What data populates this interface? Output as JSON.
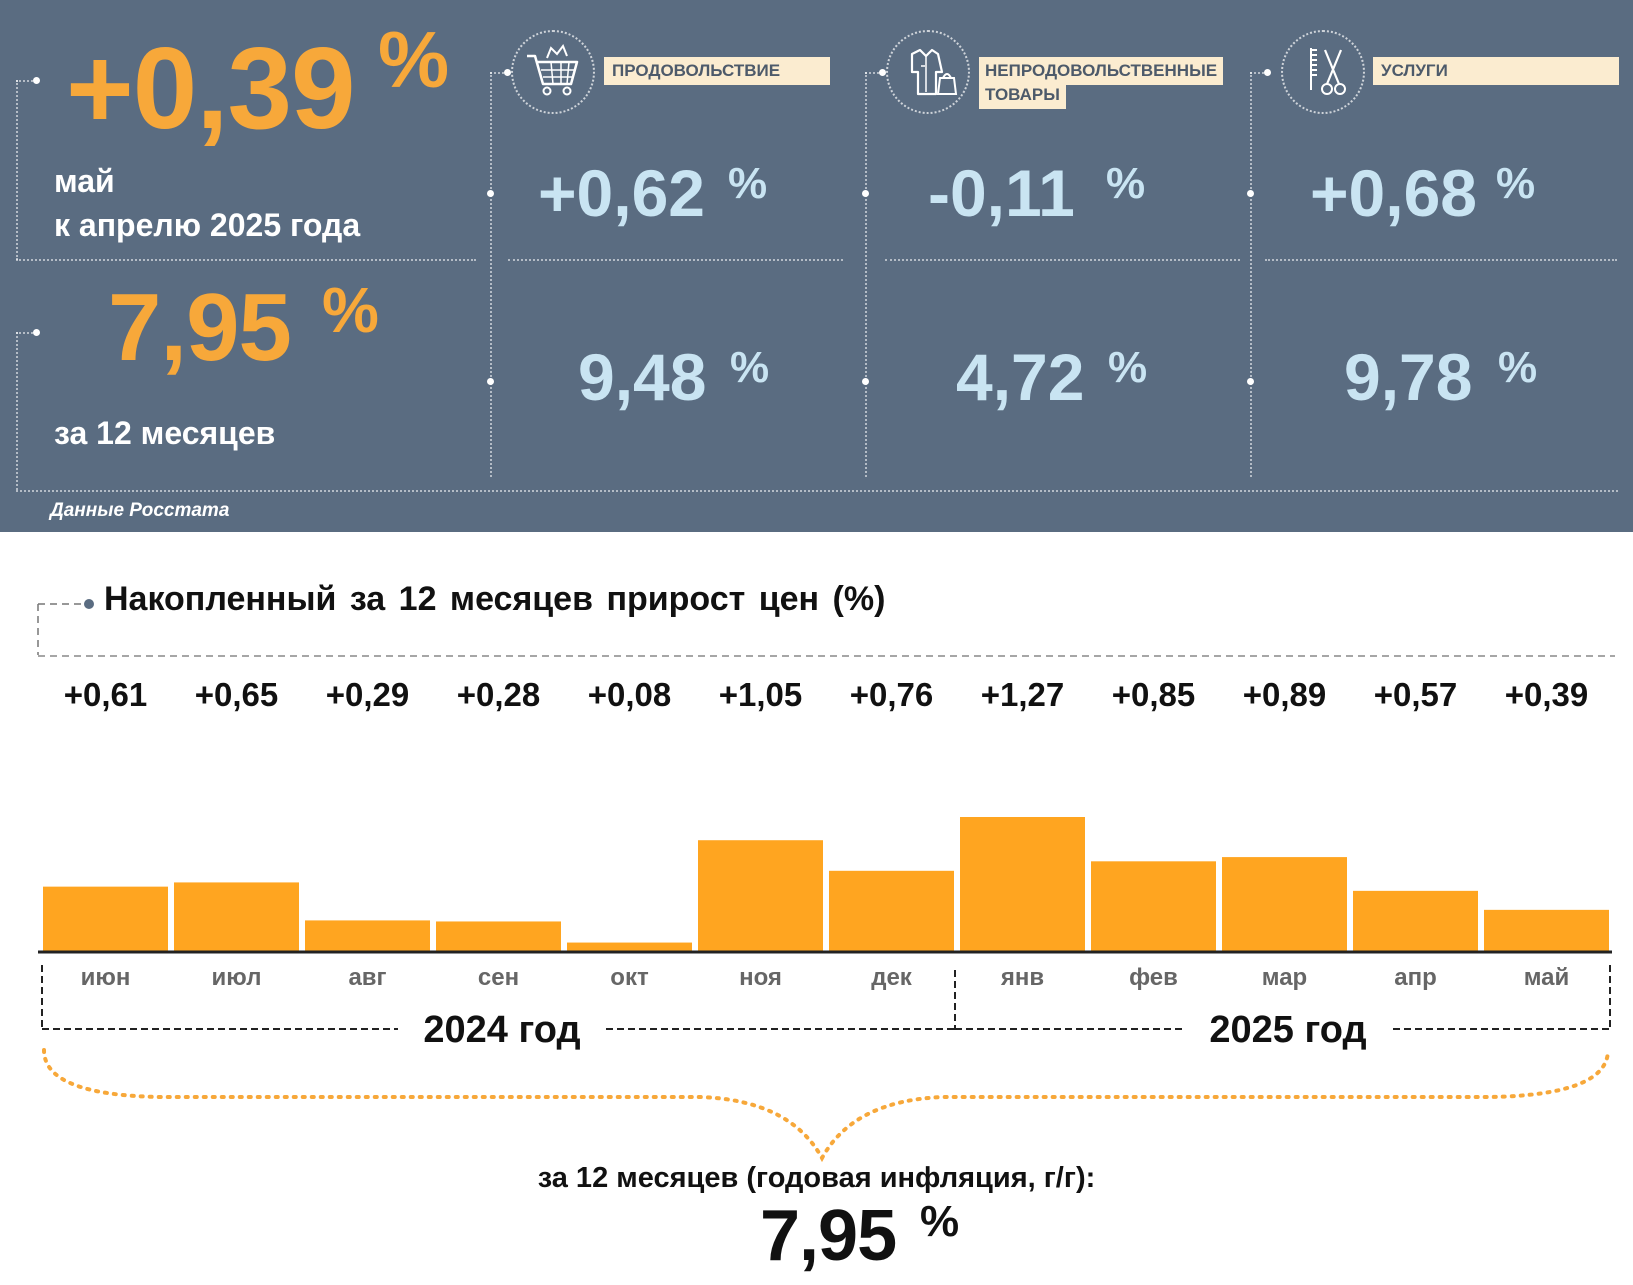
{
  "header": {
    "monthly_change": "+0,39",
    "monthly_pct_sign": "%",
    "monthly_label_line1": "май",
    "monthly_label_line2": "к апрелю 2025 года",
    "annual_change": "7,95",
    "annual_pct_sign": "%",
    "annual_label": "за 12 месяцев",
    "source": "Данные Росстата"
  },
  "categories": [
    {
      "label_line1": "ПРОДОВОЛЬСТВИЕ",
      "label_line2": "",
      "icon": "shopping-cart-icon",
      "monthly": "+0,62",
      "annual": "9,48",
      "pct_sign": "%"
    },
    {
      "label_line1": "НЕПРОДОВОЛЬСТВЕННЫЕ",
      "label_line2": "ТОВАРЫ",
      "icon": "clothing-icon",
      "monthly": "-0,11",
      "annual": "4,72",
      "pct_sign": "%"
    },
    {
      "label_line1": "УСЛУГИ",
      "label_line2": "",
      "icon": "scissors-comb-icon",
      "monthly": "+0,68",
      "annual": "9,78",
      "pct_sign": "%"
    }
  ],
  "colors": {
    "panel_bg": "#5a6c81",
    "accent_orange": "#f7a83a",
    "bar_orange": "#ffa520",
    "value_light_blue": "#c9e4f2",
    "label_bg": "#fbecd0"
  },
  "chart_data": {
    "type": "bar",
    "title": "Накопленный за 12 месяцев прирост цен (%)",
    "categories": [
      "июн",
      "июл",
      "авг",
      "сен",
      "окт",
      "ноя",
      "дек",
      "янв",
      "фев",
      "мар",
      "апр",
      "май"
    ],
    "values": [
      0.61,
      0.65,
      0.29,
      0.28,
      0.08,
      1.05,
      0.76,
      1.27,
      0.85,
      0.89,
      0.57,
      0.39
    ],
    "value_labels": [
      "+0,61",
      "+0,65",
      "+0,29",
      "+0,28",
      "+0,08",
      "+1,05",
      "+0,76",
      "+1,27",
      "+0,85",
      "+0,89",
      "+0,57",
      "+0,39"
    ],
    "groups": [
      {
        "label": "2024 год",
        "from": 0,
        "to": 6
      },
      {
        "label": "2025 год",
        "from": 7,
        "to": 11
      }
    ],
    "ylim": [
      0,
      1.27
    ],
    "grid": false,
    "legend": "none",
    "annual_label": "за 12 месяцев (годовая инфляция, г/г):",
    "annual_value": "7,95",
    "annual_pct_sign": "%"
  }
}
